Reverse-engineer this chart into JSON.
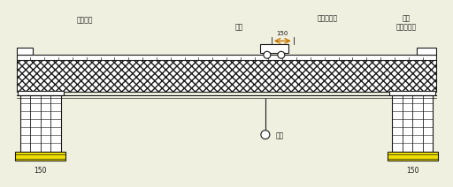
{
  "bg_color": "#f0f0e0",
  "line_color": "#1a1a1a",
  "fill_color": "#ffffff",
  "yellow_fill": "#f0e000",
  "label_zhijia": "倒桁调车",
  "label_tianhe_left": "天车",
  "label_150_top": "150",
  "label_150_bot_left": "150",
  "label_150_bot_right": "150",
  "label_diaokou": "吊钩",
  "label_fanzuo": "反坐导标机",
  "label_zhengzuo_line1": "天车",
  "label_zhengzuo_line2": "在引导标机",
  "figw": 5.12,
  "figh": 2.12,
  "dpi": 100
}
